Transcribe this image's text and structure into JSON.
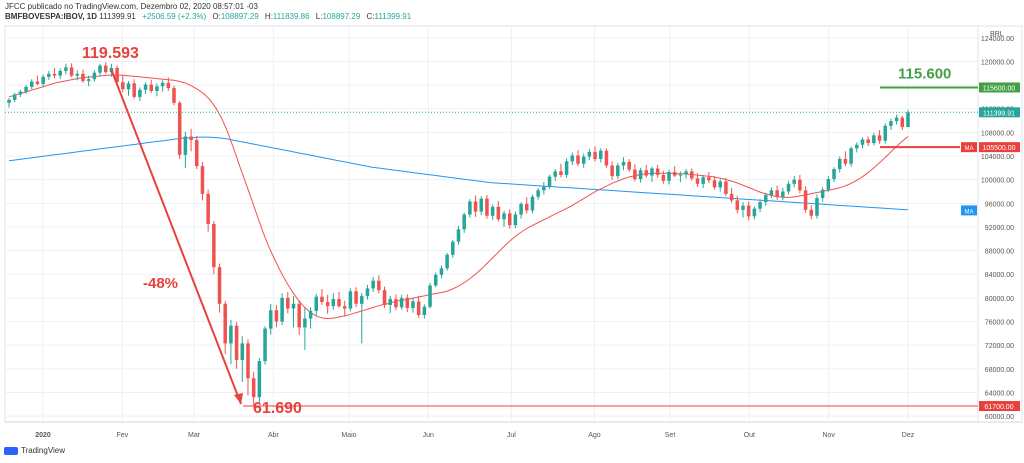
{
  "header": {
    "line1": "JFCC publicado no TradingView.com, Dezembro 02, 2020 08:57:01 -03",
    "symbol": "BMFBOVESPA:IBOV, 1D",
    "last": "111399.91",
    "change": "+2506.59 (+2.3%)",
    "open_label": "O:",
    "open": "108897.29",
    "high_label": "H:",
    "high": "111839.86",
    "low_label": "L:",
    "low": "108897.29",
    "close_label": "C:",
    "close": "111399.91"
  },
  "footer": {
    "brand": "TradingView"
  },
  "colors": {
    "up": "#26a69a",
    "down": "#ef5350",
    "ma_short": "#ef5350",
    "ma_long": "#2196f3",
    "annotation": "#e8413c",
    "target": "#43a047",
    "grid": "#eef0f3",
    "axis_text": "#555555"
  },
  "chart_data": {
    "type": "candlestick",
    "currency": "BRL",
    "ylim": [
      59000,
      126000
    ],
    "y_ticks": [
      124000.0,
      120000.0,
      116000.0,
      112000.0,
      108000.0,
      104000.0,
      100000.0,
      96000.0,
      92000.0,
      88000.0,
      84000.0,
      80000.0,
      76000.0,
      72000.0,
      68000.0,
      64000.0,
      60000.0
    ],
    "x_ticks": [
      "2020",
      "Fev",
      "Mar",
      "Abr",
      "Maio",
      "Jun",
      "Jul",
      "Ago",
      "Set",
      "Out",
      "Nov",
      "Dez"
    ],
    "ohlc": [
      [
        113000,
        113800,
        112200,
        113500
      ],
      [
        113500,
        114700,
        113100,
        114400
      ],
      [
        114400,
        115200,
        114000,
        114900
      ],
      [
        114900,
        116000,
        114500,
        115700
      ],
      [
        115700,
        117000,
        115300,
        116600
      ],
      [
        116600,
        117600,
        116000,
        116200
      ],
      [
        116200,
        117800,
        115800,
        117400
      ],
      [
        117400,
        118400,
        116900,
        117900
      ],
      [
        117900,
        118900,
        117200,
        117600
      ],
      [
        117600,
        118800,
        117000,
        118400
      ],
      [
        118400,
        119600,
        117800,
        119000
      ],
      [
        119000,
        119700,
        117300,
        117600
      ],
      [
        117600,
        118500,
        116800,
        117900
      ],
      [
        117900,
        118600,
        116400,
        116700
      ],
      [
        116700,
        117600,
        115800,
        117000
      ],
      [
        117000,
        118500,
        116600,
        118100
      ],
      [
        118100,
        119600,
        117600,
        119300
      ],
      [
        119300,
        119900,
        117900,
        118200
      ],
      [
        118200,
        119593,
        117400,
        118900
      ],
      [
        118900,
        119300,
        116200,
        116500
      ],
      [
        116500,
        117600,
        114800,
        115300
      ],
      [
        115300,
        116700,
        114200,
        116300
      ],
      [
        116300,
        117000,
        113700,
        114000
      ],
      [
        114000,
        115600,
        113300,
        115200
      ],
      [
        115200,
        116500,
        114500,
        116100
      ],
      [
        116100,
        116900,
        114700,
        115000
      ],
      [
        115000,
        116300,
        114100,
        115800
      ],
      [
        115800,
        116800,
        114900,
        116400
      ],
      [
        116400,
        117300,
        115000,
        115500
      ],
      [
        115500,
        115900,
        112600,
        113000
      ],
      [
        113000,
        113300,
        103500,
        104200
      ],
      [
        104200,
        108100,
        102000,
        107300
      ],
      [
        107300,
        108600,
        104800,
        106700
      ],
      [
        106700,
        107400,
        101800,
        102300
      ],
      [
        102300,
        103000,
        96500,
        97600
      ],
      [
        97600,
        98300,
        91200,
        92500
      ],
      [
        92500,
        93000,
        84000,
        85200
      ],
      [
        85200,
        85800,
        77500,
        79000
      ],
      [
        79000,
        79500,
        70500,
        72300
      ],
      [
        72300,
        76300,
        68800,
        75300
      ],
      [
        75300,
        75900,
        68000,
        69500
      ],
      [
        69500,
        73500,
        65800,
        72300
      ],
      [
        72300,
        73000,
        63500,
        66400
      ],
      [
        66400,
        67500,
        61690,
        63200
      ],
      [
        63200,
        69800,
        62400,
        69300
      ],
      [
        69300,
        75200,
        68700,
        74800
      ],
      [
        74800,
        79000,
        73800,
        77900
      ],
      [
        77900,
        78800,
        75000,
        76000
      ],
      [
        76000,
        80800,
        75400,
        80000
      ],
      [
        80000,
        81000,
        77400,
        78200
      ],
      [
        78200,
        80300,
        75000,
        79000
      ],
      [
        79000,
        79600,
        73700,
        75000
      ],
      [
        75000,
        78300,
        71200,
        76500
      ],
      [
        76500,
        78400,
        74800,
        77800
      ],
      [
        77800,
        80700,
        77000,
        80200
      ],
      [
        80200,
        81500,
        78800,
        79300
      ],
      [
        79300,
        80500,
        77300,
        78600
      ],
      [
        78600,
        80800,
        78000,
        79800
      ],
      [
        79800,
        81000,
        78300,
        78600
      ],
      [
        78600,
        79500,
        76900,
        78200
      ],
      [
        78200,
        81600,
        77700,
        81100
      ],
      [
        81100,
        81800,
        78400,
        79000
      ],
      [
        79000,
        80800,
        72300,
        80300
      ],
      [
        80300,
        82200,
        79700,
        81600
      ],
      [
        81600,
        83500,
        81000,
        82900
      ],
      [
        82900,
        83800,
        80800,
        81300
      ],
      [
        81300,
        81900,
        78300,
        78800
      ],
      [
        78800,
        80300,
        77400,
        79800
      ],
      [
        79800,
        80600,
        77900,
        78400
      ],
      [
        78400,
        80500,
        78000,
        80000
      ],
      [
        80000,
        80600,
        77600,
        78300
      ],
      [
        78300,
        80000,
        77500,
        79400
      ],
      [
        79400,
        80300,
        76600,
        77100
      ],
      [
        77100,
        78900,
        76500,
        78500
      ],
      [
        78500,
        82500,
        78200,
        82100
      ],
      [
        82100,
        84300,
        81800,
        83900
      ],
      [
        83900,
        85500,
        83300,
        85000
      ],
      [
        85000,
        87600,
        84600,
        87300
      ],
      [
        87300,
        89800,
        86800,
        89500
      ],
      [
        89500,
        92200,
        89000,
        91600
      ],
      [
        91600,
        94400,
        91000,
        94100
      ],
      [
        94100,
        96700,
        93600,
        96300
      ],
      [
        96300,
        97300,
        93700,
        94600
      ],
      [
        94600,
        97200,
        94000,
        96800
      ],
      [
        96800,
        97400,
        93400,
        93900
      ],
      [
        93900,
        95800,
        93200,
        95400
      ],
      [
        95400,
        96400,
        92900,
        93300
      ],
      [
        93300,
        94700,
        92000,
        94300
      ],
      [
        94300,
        95000,
        91700,
        92300
      ],
      [
        92300,
        94600,
        91800,
        94100
      ],
      [
        94100,
        96200,
        93400,
        95900
      ],
      [
        95900,
        97000,
        94300,
        94800
      ],
      [
        94800,
        97500,
        94300,
        97100
      ],
      [
        97100,
        98600,
        96600,
        98200
      ],
      [
        98200,
        99600,
        97500,
        98800
      ],
      [
        98800,
        100800,
        98400,
        100500
      ],
      [
        100500,
        101800,
        99800,
        101400
      ],
      [
        101400,
        102700,
        100400,
        100800
      ],
      [
        100800,
        103600,
        100300,
        103100
      ],
      [
        103100,
        104600,
        102500,
        104100
      ],
      [
        104100,
        105000,
        102300,
        102700
      ],
      [
        102700,
        104400,
        102000,
        103900
      ],
      [
        103900,
        105200,
        103300,
        104700
      ],
      [
        104700,
        105600,
        103100,
        103500
      ],
      [
        103500,
        105300,
        102900,
        104900
      ],
      [
        104900,
        105300,
        102000,
        102400
      ],
      [
        102400,
        103100,
        100000,
        100600
      ],
      [
        100600,
        102800,
        100100,
        102400
      ],
      [
        102400,
        103800,
        101600,
        103000
      ],
      [
        103000,
        103500,
        101300,
        101700
      ],
      [
        101700,
        102600,
        99700,
        100100
      ],
      [
        100100,
        102000,
        99500,
        101600
      ],
      [
        101600,
        102500,
        100300,
        100700
      ],
      [
        100700,
        102200,
        99600,
        101900
      ],
      [
        101900,
        102500,
        100300,
        100800
      ],
      [
        100800,
        101500,
        99300,
        99800
      ],
      [
        99800,
        101700,
        99200,
        101300
      ],
      [
        101300,
        102300,
        100400,
        100700
      ],
      [
        100700,
        101400,
        99600,
        100900
      ],
      [
        100900,
        101800,
        100200,
        101400
      ],
      [
        101400,
        101900,
        99800,
        100200
      ],
      [
        100200,
        101100,
        98800,
        99300
      ],
      [
        99300,
        100800,
        98600,
        100400
      ],
      [
        100400,
        101300,
        99400,
        99900
      ],
      [
        99900,
        100600,
        98300,
        98700
      ],
      [
        98700,
        100100,
        98000,
        99700
      ],
      [
        99700,
        100300,
        97200,
        97600
      ],
      [
        97600,
        98600,
        96100,
        96500
      ],
      [
        96500,
        97300,
        94300,
        94900
      ],
      [
        94900,
        96200,
        93600,
        95600
      ],
      [
        95600,
        96300,
        93100,
        93800
      ],
      [
        93800,
        95500,
        93300,
        95100
      ],
      [
        95100,
        96700,
        94500,
        96200
      ],
      [
        96200,
        97800,
        95600,
        97400
      ],
      [
        97400,
        98700,
        96900,
        98200
      ],
      [
        98200,
        99000,
        96600,
        97100
      ],
      [
        97100,
        98600,
        96500,
        98000
      ],
      [
        98000,
        99800,
        97500,
        99300
      ],
      [
        99300,
        100600,
        98700,
        100000
      ],
      [
        100000,
        100800,
        97700,
        98200
      ],
      [
        98200,
        98900,
        94400,
        94900
      ],
      [
        94900,
        95700,
        93300,
        93900
      ],
      [
        93900,
        97500,
        93400,
        96900
      ],
      [
        96900,
        98700,
        96300,
        98300
      ],
      [
        98300,
        100600,
        97900,
        100100
      ],
      [
        100100,
        102100,
        99600,
        101800
      ],
      [
        101800,
        103900,
        101200,
        103500
      ],
      [
        103500,
        104800,
        102300,
        102700
      ],
      [
        102700,
        105600,
        102200,
        105300
      ],
      [
        105300,
        106300,
        104600,
        105900
      ],
      [
        105900,
        107200,
        105300,
        106800
      ],
      [
        106800,
        107300,
        105700,
        106200
      ],
      [
        106200,
        107900,
        105800,
        107500
      ],
      [
        107500,
        108400,
        106100,
        106600
      ],
      [
        106600,
        109500,
        106100,
        109100
      ],
      [
        109100,
        110300,
        108400,
        109900
      ],
      [
        109900,
        111000,
        109300,
        110500
      ],
      [
        110500,
        110800,
        108400,
        108900
      ],
      [
        108900,
        111839,
        108897,
        111399
      ]
    ],
    "ma_short": [
      114000,
      114300,
      114600,
      114900,
      115200,
      115500,
      115800,
      116100,
      116400,
      116600,
      116800,
      117000,
      117200,
      117300,
      117400,
      117500,
      117600,
      117700,
      117700,
      117700,
      117600,
      117500,
      117400,
      117300,
      117200,
      117100,
      117000,
      116900,
      116800,
      116600,
      116300,
      115800,
      115200,
      114500,
      113500,
      112100,
      110300,
      108000,
      105200,
      102300,
      99500,
      96700,
      93800,
      91000,
      88500,
      86300,
      84300,
      82500,
      80900,
      79500,
      78400,
      77500,
      76900,
      76600,
      76500,
      76600,
      76800,
      77000,
      77300,
      77600,
      77900,
      78200,
      78500,
      78800,
      79000,
      79300,
      79500,
      79700,
      79900,
      80100,
      80300,
      80500,
      80700,
      80900,
      81100,
      81500,
      82000,
      82600,
      83300,
      84100,
      85000,
      86000,
      87000,
      88000,
      89000,
      89900,
      90700,
      91400,
      92000,
      92500,
      93000,
      93500,
      94000,
      94500,
      95000,
      95500,
      96100,
      96700,
      97300,
      97900,
      98400,
      98900,
      99400,
      99800,
      100200,
      100500,
      100700,
      100900,
      101000,
      101100,
      101100,
      101100,
      101100,
      101000,
      101000,
      100900,
      100800,
      100700,
      100600,
      100500,
      100300,
      100100,
      99800,
      99500,
      99100,
      98700,
      98300,
      97900,
      97600,
      97300,
      97100,
      97000,
      97000,
      97100,
      97300,
      97500,
      97700,
      97900,
      98100,
      98300,
      98500,
      98800,
      99200,
      99700,
      100300,
      101000,
      101800,
      102700,
      103600,
      104600,
      105600,
      106500,
      107300
    ],
    "ma_long": [
      103200,
      103400,
      103600,
      103800,
      104000,
      104200,
      104400,
      104600,
      104800,
      105000,
      105200,
      105400,
      105600,
      105800,
      106000,
      106200,
      106400,
      106600,
      106800,
      107000,
      107100,
      107200,
      107200,
      107100,
      106900,
      106600,
      106300,
      106000,
      105700,
      105400,
      105100,
      104800,
      104500,
      104200,
      103900,
      103600,
      103300,
      103000,
      102700,
      102400,
      102100,
      101900,
      101700,
      101500,
      101300,
      101100,
      100900,
      100700,
      100500,
      100300,
      100100,
      99900,
      99700,
      99500,
      99400,
      99300,
      99200,
      99100,
      99000,
      98900,
      98800,
      98700,
      98600,
      98500,
      98400,
      98300,
      98200,
      98100,
      98000,
      97900,
      97800,
      97700,
      97600,
      97500,
      97400,
      97300,
      97200,
      97100,
      97000,
      96900,
      96800,
      96700,
      96600,
      96500,
      96400,
      96300,
      96200,
      96100,
      96000,
      95900,
      95800,
      95700,
      95600,
      95500,
      95400,
      95300,
      95200,
      95100,
      95000,
      94900
    ],
    "ma_long_start_index": 0,
    "price_labels": {
      "target": "115600.00",
      "current": "111399.91",
      "resistance": "105500.00",
      "low": "61700.00",
      "ma_badge": "MA"
    },
    "annotations": {
      "peak": "119.593",
      "low": "61.690",
      "drop": "-48%",
      "target": "115.600"
    },
    "levels": {
      "target": 115600,
      "resistance": 105500,
      "low": 61700,
      "peak": 119593,
      "current": 111399.91
    }
  }
}
